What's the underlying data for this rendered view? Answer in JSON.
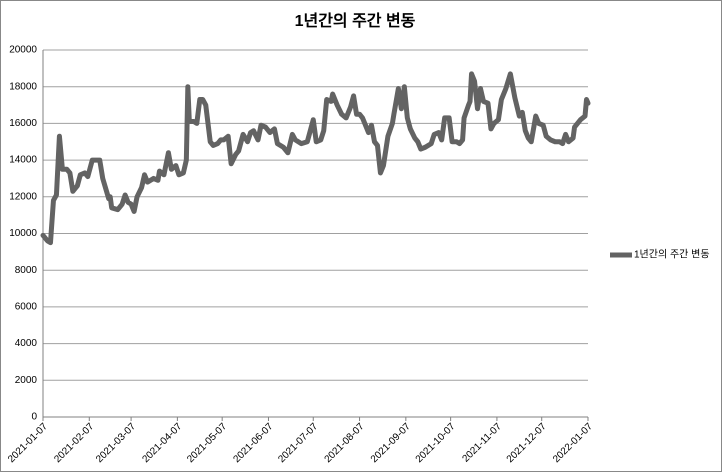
{
  "chart_data": {
    "type": "line",
    "title": "1년간의 주간 변동",
    "legend": "right",
    "grid": true,
    "ylim": [
      0,
      20000
    ],
    "yticks": [
      0,
      2000,
      4000,
      6000,
      8000,
      10000,
      12000,
      14000,
      16000,
      18000,
      20000
    ],
    "xlim": [
      "2021-01-07",
      "2022-01-07"
    ],
    "xticks": [
      "2021-01-07",
      "2021-02-07",
      "2021-03-07",
      "2021-04-07",
      "2021-05-07",
      "2021-06-07",
      "2021-07-07",
      "2021-08-07",
      "2021-09-07",
      "2021-10-07",
      "2021-11-07",
      "2021-12-07",
      "2022-01-07"
    ],
    "x": [
      "2021-01-07",
      "2021-01-10",
      "2021-01-12",
      "2021-01-14",
      "2021-01-16",
      "2021-01-18",
      "2021-01-20",
      "2021-01-23",
      "2021-01-25",
      "2021-01-27",
      "2021-01-30",
      "2021-02-01",
      "2021-02-04",
      "2021-02-06",
      "2021-02-09",
      "2021-02-14",
      "2021-02-16",
      "2021-02-20",
      "2021-02-21",
      "2021-02-22",
      "2021-02-26",
      "2021-03-01",
      "2021-03-03",
      "2021-03-05",
      "2021-03-07",
      "2021-03-09",
      "2021-03-11",
      "2021-03-14",
      "2021-03-16",
      "2021-03-18",
      "2021-03-22",
      "2021-03-25",
      "2021-03-26",
      "2021-03-29",
      "2021-04-01",
      "2021-04-03",
      "2021-04-06",
      "2021-04-08",
      "2021-04-11",
      "2021-04-13",
      "2021-04-14",
      "2021-04-15",
      "2021-04-18",
      "2021-04-20",
      "2021-04-22",
      "2021-04-24",
      "2021-04-26",
      "2021-04-29",
      "2021-05-01",
      "2021-05-04",
      "2021-05-06",
      "2021-05-08",
      "2021-05-11",
      "2021-05-13",
      "2021-05-16",
      "2021-05-18",
      "2021-05-21",
      "2021-05-24",
      "2021-05-26",
      "2021-05-28",
      "2021-05-31",
      "2021-06-02",
      "2021-06-05",
      "2021-06-08",
      "2021-06-11",
      "2021-06-13",
      "2021-06-17",
      "2021-06-20",
      "2021-06-23",
      "2021-06-25",
      "2021-06-29",
      "2021-07-03",
      "2021-07-07",
      "2021-07-09",
      "2021-07-12",
      "2021-07-14",
      "2021-07-16",
      "2021-07-19",
      "2021-07-20",
      "2021-07-23",
      "2021-07-26",
      "2021-07-29",
      "2021-08-01",
      "2021-08-03",
      "2021-08-05",
      "2021-08-07",
      "2021-08-09",
      "2021-08-13",
      "2021-08-15",
      "2021-08-17",
      "2021-08-19",
      "2021-08-21",
      "2021-08-23",
      "2021-08-26",
      "2021-08-29",
      "2021-08-30",
      "2021-09-02",
      "2021-09-04",
      "2021-09-06",
      "2021-09-08",
      "2021-09-10",
      "2021-09-13",
      "2021-09-15",
      "2021-09-17",
      "2021-09-20",
      "2021-09-24",
      "2021-09-26",
      "2021-09-29",
      "2021-10-01",
      "2021-10-03",
      "2021-10-06",
      "2021-10-08",
      "2021-10-11",
      "2021-10-13",
      "2021-10-15",
      "2021-10-16",
      "2021-10-19",
      "2021-10-20",
      "2021-10-21",
      "2021-10-23",
      "2021-10-25",
      "2021-10-27",
      "2021-10-29",
      "2021-11-01",
      "2021-11-03",
      "2021-11-05",
      "2021-11-08",
      "2021-11-10",
      "2021-11-13",
      "2021-11-16",
      "2021-11-19",
      "2021-11-22",
      "2021-11-24",
      "2021-11-26",
      "2021-11-28",
      "2021-11-30",
      "2021-12-03",
      "2021-12-05",
      "2021-12-08",
      "2021-12-10",
      "2021-12-13",
      "2021-12-16",
      "2021-12-19",
      "2021-12-21",
      "2021-12-23",
      "2021-12-25",
      "2021-12-28",
      "2021-12-29",
      "2022-01-02",
      "2022-01-05",
      "2022-01-06",
      "2022-01-07"
    ],
    "series": [
      {
        "name": "1년간의 주간 변동",
        "color": "#636363",
        "values": [
          9900,
          9600,
          9500,
          11800,
          12100,
          15300,
          13500,
          13500,
          13300,
          12300,
          12600,
          13200,
          13300,
          13100,
          14000,
          14000,
          13000,
          11900,
          12000,
          11400,
          11300,
          11600,
          12100,
          11700,
          11600,
          11200,
          12000,
          12500,
          13200,
          12800,
          13000,
          12900,
          13400,
          13200,
          14400,
          13500,
          13700,
          13200,
          13300,
          14000,
          18000,
          16100,
          16100,
          16000,
          17300,
          17300,
          17000,
          15000,
          14800,
          14900,
          15100,
          15100,
          15300,
          13800,
          14300,
          14500,
          15400,
          15000,
          15500,
          15600,
          15100,
          15900,
          15800,
          15500,
          15700,
          14900,
          14700,
          14400,
          15400,
          15100,
          14900,
          15000,
          16200,
          15000,
          15100,
          15600,
          17300,
          17200,
          17600,
          17000,
          16500,
          16300,
          16900,
          17500,
          16500,
          16500,
          16300,
          15500,
          15900,
          15000,
          14800,
          13300,
          13700,
          15300,
          16000,
          16500,
          17900,
          16800,
          18000,
          16300,
          15700,
          15200,
          15000,
          14600,
          14700,
          14900,
          15400,
          15500,
          15100,
          16300,
          16300,
          15000,
          15000,
          14900,
          15100,
          16300,
          17000,
          17200,
          18700,
          18300,
          16800,
          17900,
          17200,
          17100,
          15700,
          16000,
          16200,
          17300,
          17900,
          18700,
          17400,
          16400,
          16600,
          15600,
          15200,
          15000,
          16400,
          16000,
          15900,
          15300,
          15100,
          15000,
          15000,
          14900,
          15400,
          15000,
          15200,
          15800,
          16200,
          16400,
          17300,
          17100
        ]
      }
    ]
  }
}
